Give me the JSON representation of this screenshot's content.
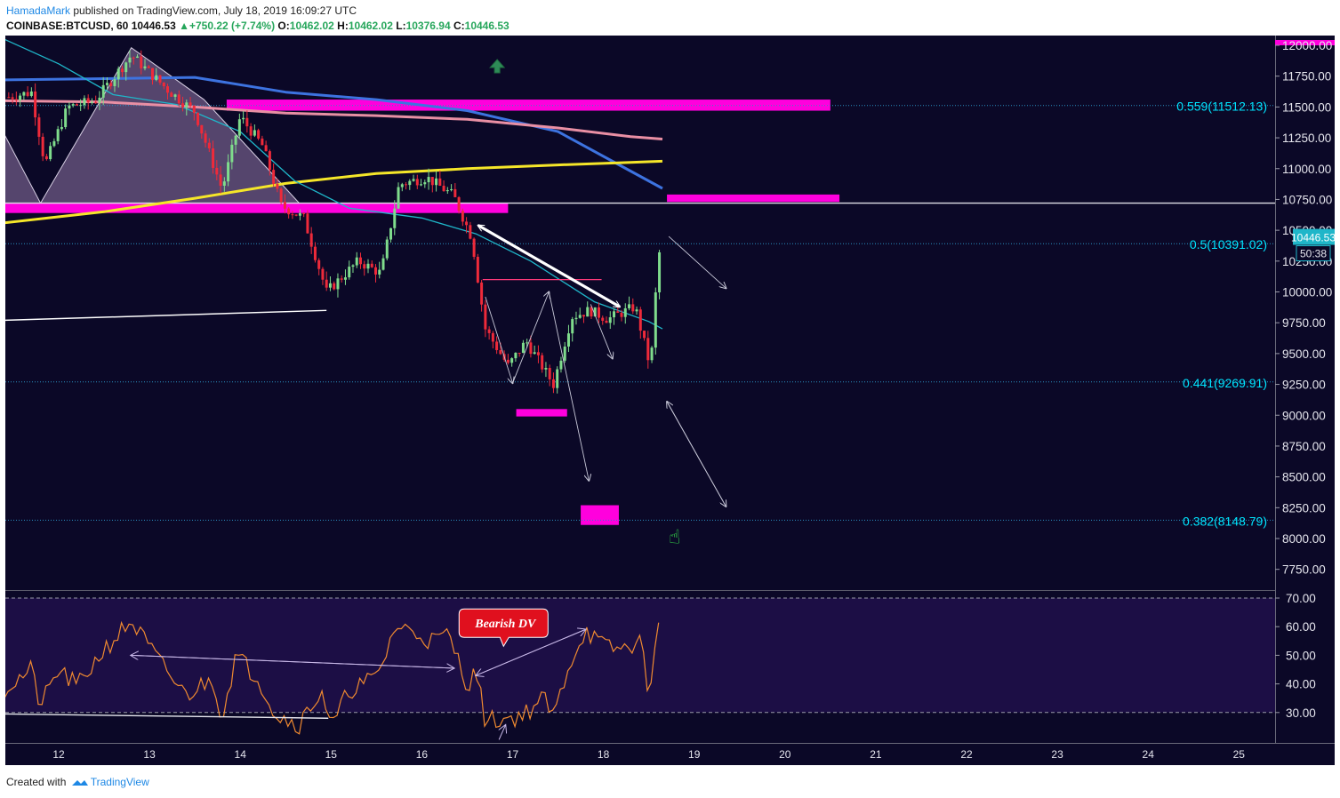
{
  "header": {
    "author": "HamadaMark",
    "published": "published on TradingView.com, July 18, 2019 16:09:27 UTC",
    "symbol": "COINBASE:BTCUSD, 60",
    "price": "10446.53",
    "change": "+750.22 (+7.74%)",
    "o_label": "O:",
    "o_value": "10462.02",
    "h_label": "H:",
    "h_value": "10462.02",
    "l_label": "L:",
    "l_value": "10376.94",
    "c_label": "C:",
    "c_value": "10446.53"
  },
  "footer": {
    "created_with": "Created with",
    "brand": "TradingView"
  },
  "colors": {
    "background": "#0b0827",
    "rsi_band": "#1c0e45",
    "magenta": "#ff00dd",
    "yellow_ma": "#f5e629",
    "blue_ma": "#3d73e0",
    "pink_ma": "#e98fa4",
    "teal_ma": "#1fb6c9",
    "up_candle": "#7fdc8c",
    "down_candle": "#ee2a3a",
    "rsi_line": "#f08a30",
    "fib_label": "#00e5ff"
  },
  "chart_data": [
    {
      "type": "candlestick",
      "title": "COINBASE:BTCUSD, 60",
      "y_axis": {
        "ticks": [
          "12000.00",
          "11750.00",
          "11500.00",
          "11250.00",
          "11000.00",
          "10750.00",
          "10500.00",
          "10250.00",
          "10000.00",
          "9750.00",
          "9500.00",
          "9250.00",
          "9000.00",
          "8750.00",
          "8500.00",
          "8250.00",
          "8000.00",
          "7750.00"
        ],
        "range": [
          7650,
          12050
        ]
      },
      "x_axis": {
        "ticks": [
          "12",
          "13",
          "14",
          "15",
          "16",
          "17",
          "18",
          "19",
          "20",
          "21",
          "22",
          "23",
          "24",
          "25"
        ]
      },
      "last_price_label": "10446.53",
      "countdown_label": "50:38",
      "last_price": 10446.53,
      "fib_levels": [
        {
          "label": "0.559(11512.13)",
          "value": 11512.13
        },
        {
          "label": "0.5(10391.02)",
          "value": 10391.02
        },
        {
          "label": "0.441(9269.91)",
          "value": 9269.91
        },
        {
          "label": "0.382(8148.79)",
          "value": 8148.79
        }
      ],
      "horizontal_line": 10720,
      "price_path_keypoints": [
        {
          "day": 11.45,
          "price": 11580
        },
        {
          "day": 11.7,
          "price": 11620
        },
        {
          "day": 11.85,
          "price": 11030
        },
        {
          "day": 12.1,
          "price": 11500
        },
        {
          "day": 12.4,
          "price": 11550
        },
        {
          "day": 12.8,
          "price": 11920
        },
        {
          "day": 13.2,
          "price": 11640
        },
        {
          "day": 13.5,
          "price": 11460
        },
        {
          "day": 13.8,
          "price": 10830
        },
        {
          "day": 14.0,
          "price": 11420
        },
        {
          "day": 14.25,
          "price": 11180
        },
        {
          "day": 14.45,
          "price": 10700
        },
        {
          "day": 14.7,
          "price": 10600
        },
        {
          "day": 14.95,
          "price": 10000
        },
        {
          "day": 15.3,
          "price": 10250
        },
        {
          "day": 15.55,
          "price": 10150
        },
        {
          "day": 15.75,
          "price": 10870
        },
        {
          "day": 16.05,
          "price": 10930
        },
        {
          "day": 16.35,
          "price": 10780
        },
        {
          "day": 16.55,
          "price": 10440
        },
        {
          "day": 16.7,
          "price": 9700
        },
        {
          "day": 16.95,
          "price": 9400
        },
        {
          "day": 17.15,
          "price": 9600
        },
        {
          "day": 17.45,
          "price": 9250
        },
        {
          "day": 17.65,
          "price": 9800
        },
        {
          "day": 17.85,
          "price": 9850
        },
        {
          "day": 18.05,
          "price": 9780
        },
        {
          "day": 18.35,
          "price": 9880
        },
        {
          "day": 18.52,
          "price": 9380
        },
        {
          "day": 18.6,
          "price": 10250
        },
        {
          "day": 18.65,
          "price": 10446
        }
      ],
      "moving_averages": [
        {
          "color": "blue",
          "points": [
            [
              11.4,
              11720
            ],
            [
              12.5,
              11730
            ],
            [
              13.5,
              11740
            ],
            [
              14.5,
              11620
            ],
            [
              15.5,
              11560
            ],
            [
              16.5,
              11470
            ],
            [
              17.5,
              11300
            ],
            [
              18.2,
              11020
            ],
            [
              18.65,
              10840
            ]
          ]
        },
        {
          "color": "pink",
          "points": [
            [
              11.4,
              11550
            ],
            [
              12.5,
              11540
            ],
            [
              13.5,
              11500
            ],
            [
              14.5,
              11450
            ],
            [
              15.5,
              11430
            ],
            [
              16.5,
              11400
            ],
            [
              17.5,
              11330
            ],
            [
              18.3,
              11260
            ],
            [
              18.65,
              11240
            ]
          ]
        },
        {
          "color": "yellow",
          "points": [
            [
              11.4,
              10560
            ],
            [
              12.5,
              10650
            ],
            [
              13.5,
              10760
            ],
            [
              14.5,
              10880
            ],
            [
              15.5,
              10960
            ],
            [
              16.5,
              11000
            ],
            [
              17.5,
              11030
            ],
            [
              18.3,
              11050
            ],
            [
              18.65,
              11060
            ]
          ]
        },
        {
          "color": "teal",
          "points": [
            [
              11.4,
              12050
            ],
            [
              12.0,
              11850
            ],
            [
              12.6,
              11600
            ],
            [
              13.3,
              11520
            ],
            [
              14.0,
              11300
            ],
            [
              14.6,
              10900
            ],
            [
              15.2,
              10680
            ],
            [
              16.0,
              10600
            ],
            [
              16.6,
              10470
            ],
            [
              17.2,
              10250
            ],
            [
              17.9,
              9920
            ],
            [
              18.5,
              9760
            ],
            [
              18.65,
              9700
            ]
          ]
        }
      ]
    },
    {
      "type": "line",
      "title": "RSI",
      "y_axis": {
        "ticks": [
          "70.00",
          "60.00",
          "50.00",
          "40.00",
          "30.00"
        ],
        "range": [
          20,
          72
        ]
      },
      "bands": [
        30,
        70
      ],
      "annotation": "Bearish DV",
      "keypoints": [
        {
          "day": 11.4,
          "value": 38
        },
        {
          "day": 11.7,
          "value": 45
        },
        {
          "day": 11.8,
          "value": 32
        },
        {
          "day": 12.0,
          "value": 45
        },
        {
          "day": 12.2,
          "value": 39
        },
        {
          "day": 12.5,
          "value": 52
        },
        {
          "day": 12.8,
          "value": 62
        },
        {
          "day": 13.1,
          "value": 48
        },
        {
          "day": 13.4,
          "value": 36
        },
        {
          "day": 13.7,
          "value": 42
        },
        {
          "day": 13.8,
          "value": 28
        },
        {
          "day": 13.95,
          "value": 50
        },
        {
          "day": 14.2,
          "value": 42
        },
        {
          "day": 14.4,
          "value": 29
        },
        {
          "day": 14.65,
          "value": 26
        },
        {
          "day": 14.9,
          "value": 38
        },
        {
          "day": 15.0,
          "value": 24
        },
        {
          "day": 15.2,
          "value": 38
        },
        {
          "day": 15.5,
          "value": 42
        },
        {
          "day": 15.6,
          "value": 50
        },
        {
          "day": 15.7,
          "value": 60
        },
        {
          "day": 15.95,
          "value": 58
        },
        {
          "day": 16.1,
          "value": 55
        },
        {
          "day": 16.3,
          "value": 57
        },
        {
          "day": 16.5,
          "value": 40
        },
        {
          "day": 16.6,
          "value": 44
        },
        {
          "day": 16.7,
          "value": 27
        },
        {
          "day": 16.95,
          "value": 28
        },
        {
          "day": 17.1,
          "value": 29
        },
        {
          "day": 17.35,
          "value": 35
        },
        {
          "day": 17.45,
          "value": 28
        },
        {
          "day": 17.6,
          "value": 45
        },
        {
          "day": 17.8,
          "value": 59
        },
        {
          "day": 18.0,
          "value": 53
        },
        {
          "day": 18.2,
          "value": 52
        },
        {
          "day": 18.4,
          "value": 55
        },
        {
          "day": 18.5,
          "value": 38
        },
        {
          "day": 18.58,
          "value": 55
        },
        {
          "day": 18.65,
          "value": 65
        }
      ]
    }
  ]
}
